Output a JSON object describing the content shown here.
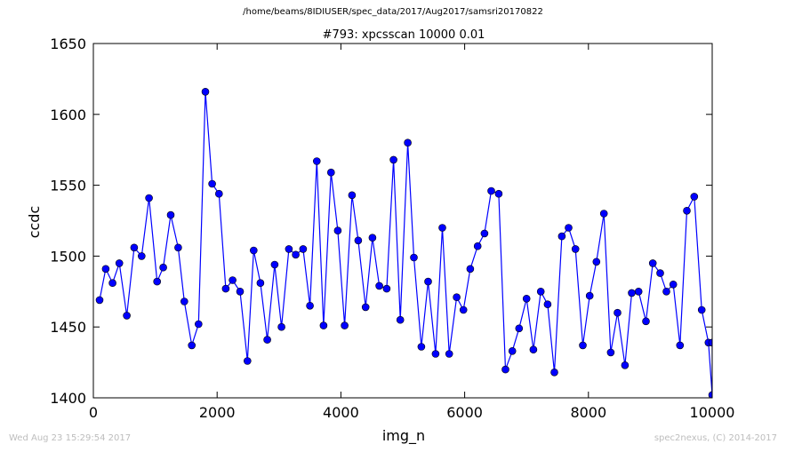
{
  "page": {
    "suptitle": "/home/beams/8IDIUSER/spec_data/2017/Aug2017/samsri20170822",
    "timestamp": "Wed Aug 23 15:29:54 2017",
    "credit": "spec2nexus, (C) 2014-2017"
  },
  "chart_data": {
    "type": "scatter",
    "title": "#793: xpcsscan 10000 0.01",
    "xlabel": "img_n",
    "ylabel": "ccdc",
    "xlim": [
      0,
      10000
    ],
    "ylim": [
      1400,
      1650
    ],
    "xticks": [
      0,
      2000,
      4000,
      6000,
      8000,
      10000
    ],
    "yticks": [
      1400,
      1450,
      1500,
      1550,
      1600,
      1650
    ],
    "grid": false,
    "line_color": "#0000ff",
    "marker_color": "#0000ff",
    "series": [
      {
        "x": [
          100,
          200,
          310,
          420,
          540,
          660,
          780,
          900,
          1030,
          1130,
          1250,
          1370,
          1470,
          1590,
          1700,
          1810,
          1920,
          2030,
          2140,
          2250,
          2370,
          2490,
          2590,
          2700,
          2810,
          2930,
          3040,
          3160,
          3270,
          3390,
          3500,
          3610,
          3720,
          3840,
          3950,
          4060,
          4180,
          4280,
          4400,
          4510,
          4620,
          4740,
          4850,
          4960,
          5080,
          5180,
          5300,
          5410,
          5530,
          5640,
          5750,
          5870,
          5980,
          6090,
          6210,
          6320,
          6430,
          6550,
          6660,
          6770,
          6880,
          7000,
          7110,
          7230,
          7340,
          7450,
          7570,
          7680,
          7790,
          7910,
          8020,
          8130,
          8250,
          8360,
          8470,
          8590,
          8700,
          8810,
          8930,
          9040,
          9160,
          9260,
          9370,
          9480,
          9590,
          9710,
          9830,
          9940,
          10000,
          10000
        ],
        "y": [
          1469,
          1491,
          1481,
          1495,
          1458,
          1506,
          1500,
          1541,
          1482,
          1492,
          1529,
          1506,
          1468,
          1437,
          1452,
          1616,
          1551,
          1544,
          1477,
          1483,
          1475,
          1426,
          1504,
          1481,
          1441,
          1494,
          1450,
          1505,
          1501,
          1505,
          1465,
          1567,
          1451,
          1559,
          1518,
          1451,
          1543,
          1511,
          1464,
          1513,
          1479,
          1477,
          1568,
          1455,
          1580,
          1499,
          1436,
          1482,
          1431,
          1520,
          1431,
          1471,
          1462,
          1491,
          1507,
          1516,
          1546,
          1544,
          1420,
          1433,
          1449,
          1470,
          1434,
          1475,
          1466,
          1418,
          1514,
          1520,
          1505,
          1437,
          1472,
          1496,
          1530,
          1432,
          1460,
          1423,
          1474,
          1475,
          1454,
          1495,
          1488,
          1475,
          1480,
          1437,
          1532,
          1542,
          1462,
          1439,
          1402,
          1439
        ]
      }
    ]
  }
}
